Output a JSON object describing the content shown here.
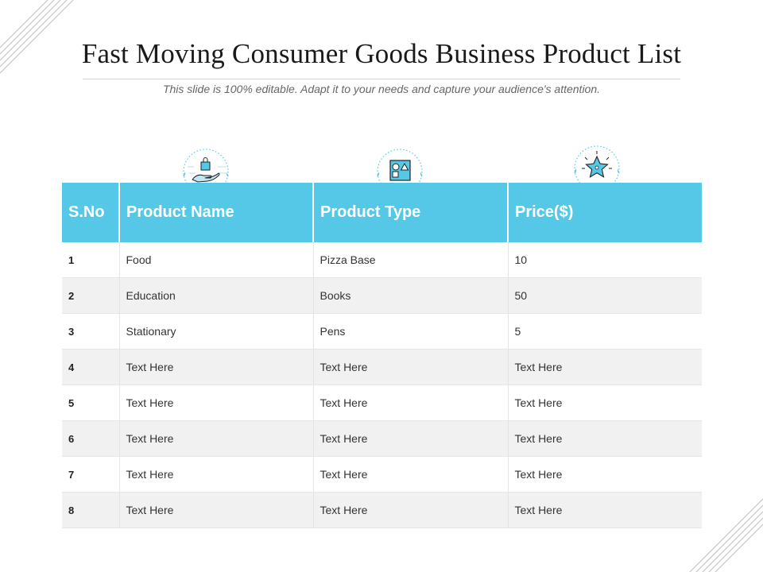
{
  "title": "Fast Moving Consumer Goods Business Product List",
  "subtitle": "This slide is 100% editable. Adapt it to your needs and capture your audience's attention.",
  "colors": {
    "accent": "#55c8e8",
    "header_text": "#ffffff",
    "row_alt": "#f1f1f1"
  },
  "icons": [
    "hand-with-shopping-bag-icon",
    "shapes-icon",
    "star-icon"
  ],
  "table": {
    "headers": [
      "S.No",
      "Product Name",
      "Product Type",
      "Price($)"
    ],
    "rows": [
      [
        "1",
        "Food",
        "Pizza Base",
        "10"
      ],
      [
        "2",
        "Education",
        "Books",
        "50"
      ],
      [
        "3",
        "Stationary",
        "Pens",
        "5"
      ],
      [
        "4",
        "Text Here",
        "Text Here",
        "Text Here"
      ],
      [
        "5",
        "Text Here",
        "Text Here",
        "Text Here"
      ],
      [
        "6",
        "Text Here",
        "Text Here",
        "Text Here"
      ],
      [
        "7",
        "Text Here",
        "Text Here",
        "Text Here"
      ],
      [
        "8",
        "Text Here",
        "Text Here",
        "Text Here"
      ]
    ]
  }
}
